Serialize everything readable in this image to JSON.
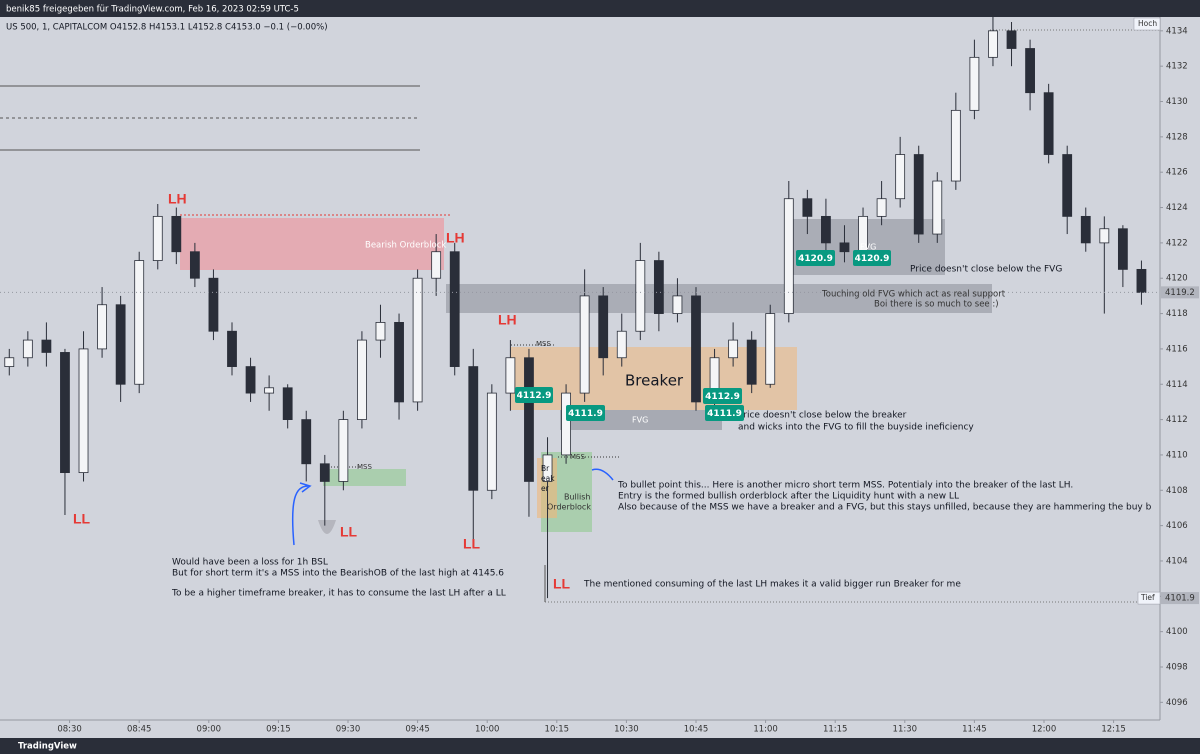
{
  "header": {
    "title": "benik85 freigegeben für TradingView.com, Feb 16, 2023 02:59 UTC-5"
  },
  "footer": {
    "brand": "TradingView"
  },
  "chart_data": {
    "type": "candlestick",
    "title": "US 500, 1, CAPITALCOM  O4152.8  H4153.1  L4152.8  C4153.0  −0.1 (−0.00%)",
    "x": [
      "08:17",
      "08:21",
      "08:25",
      "08:29",
      "08:33",
      "08:37",
      "08:41",
      "08:45",
      "08:49",
      "08:53",
      "08:57",
      "09:01",
      "09:05",
      "09:09",
      "09:13",
      "09:17",
      "09:21",
      "09:25",
      "09:29",
      "09:33",
      "09:37",
      "09:41",
      "09:45",
      "09:49",
      "09:53",
      "09:57",
      "10:01",
      "10:05",
      "10:09",
      "10:13",
      "10:17",
      "10:21",
      "10:25",
      "10:29",
      "10:33",
      "10:37",
      "10:41",
      "10:45",
      "10:49",
      "10:53",
      "10:57",
      "11:01",
      "11:05",
      "11:09",
      "11:13",
      "11:17",
      "11:21",
      "11:25",
      "11:29",
      "11:33",
      "11:37",
      "11:41",
      "11:45",
      "11:49",
      "11:53",
      "11:57",
      "12:01",
      "12:05",
      "12:09",
      "12:13",
      "12:17",
      "12:21"
    ],
    "open": [
      4115.0,
      4115.5,
      4116.5,
      4115.8,
      4109,
      4116,
      4118.5,
      4114,
      4121,
      4123.5,
      4121.5,
      4120,
      4117,
      4115,
      4113.5,
      4113.8,
      4112,
      4109.5,
      4108.5,
      4112,
      4116.5,
      4117.5,
      4113,
      4120,
      4121.5,
      4115,
      4108,
      4113.5,
      4115.5,
      4108.5,
      4110,
      4113.5,
      4119,
      4115.5,
      4117,
      4121,
      4118,
      4119,
      4113,
      4115.5,
      4116.5,
      4114,
      4118,
      4124.5,
      4123.5,
      4122,
      4121.5,
      4123.5,
      4124.5,
      4127,
      4122.5,
      4125.5,
      4129.5,
      4132.5,
      4134,
      4133,
      4130.5,
      4127,
      4123.5,
      4122,
      4122.8,
      4120.5
    ],
    "high": [
      4116,
      4117,
      4117.5,
      4116,
      4117,
      4119.5,
      4119,
      4121.5,
      4124.2,
      4124,
      4122,
      4120.5,
      4117.5,
      4115.5,
      4114.5,
      4114,
      4112.5,
      4110,
      4112.5,
      4117,
      4118.5,
      4118,
      4120.5,
      4122.5,
      4122,
      4116,
      4114,
      4116.5,
      4116,
      4111,
      4114,
      4120.5,
      4119.5,
      4118,
      4122,
      4121.5,
      4120,
      4119.5,
      4116,
      4117.5,
      4117,
      4118.5,
      4125.5,
      4125,
      4124.5,
      4123,
      4124,
      4125.5,
      4128,
      4127.5,
      4126,
      4130.5,
      4133.5,
      4135,
      4134.5,
      4133.5,
      4131,
      4127.5,
      4124,
      4123.5,
      4123,
      4121
    ],
    "low": [
      4114.5,
      4115,
      4115,
      4106.6,
      4108.5,
      4115.5,
      4113,
      4113.5,
      4120.5,
      4120.8,
      4119.5,
      4116.5,
      4114.5,
      4113,
      4112.5,
      4111.5,
      4108.5,
      4106,
      4108,
      4111.5,
      4115.5,
      4112,
      4112.5,
      4119,
      4114.5,
      4105.2,
      4107.5,
      4112.5,
      4106.5,
      4101.9,
      4109.5,
      4113,
      4114.5,
      4115,
      4116.5,
      4117,
      4117.5,
      4112.5,
      4112.8,
      4115,
      4113.5,
      4113.8,
      4117.5,
      4122.5,
      4121,
      4120.9,
      4121,
      4123,
      4124,
      4122,
      4122,
      4125,
      4129,
      4132,
      4132,
      4129.5,
      4126.5,
      4122.5,
      4121.5,
      4118,
      4119.5,
      4118.5
    ],
    "close": [
      4115.5,
      4116.5,
      4115.8,
      4109,
      4116,
      4118.5,
      4114,
      4121,
      4123.5,
      4121.5,
      4120,
      4117,
      4115,
      4113.5,
      4113.8,
      4112,
      4109.5,
      4108.5,
      4112,
      4116.5,
      4117.5,
      4113,
      4120,
      4121.5,
      4115,
      4108,
      4113.5,
      4115.5,
      4108.5,
      4110,
      4113.5,
      4119,
      4115.5,
      4117,
      4121,
      4118,
      4119,
      4113,
      4115.5,
      4116.5,
      4114,
      4118,
      4124.5,
      4123.5,
      4122,
      4121.5,
      4123.5,
      4124.5,
      4127,
      4122.5,
      4125.5,
      4129.5,
      4132.5,
      4134,
      4133,
      4130.5,
      4127,
      4123.5,
      4122,
      4122.8,
      4120.5,
      4119.2
    ],
    "up_color": "#f4f5f7",
    "down_color": "#2a2e39",
    "xlim": [
      "08:15",
      "12:25"
    ],
    "xticks": [
      "08:30",
      "08:45",
      "09:00",
      "09:15",
      "09:30",
      "09:45",
      "10:00",
      "10:15",
      "10:30",
      "10:45",
      "11:00",
      "11:15",
      "11:30",
      "11:45",
      "12:00",
      "12:15"
    ],
    "ylim": [
      4095,
      4134.5
    ],
    "yticks": [
      4096,
      4098,
      4100,
      4102,
      4104,
      4106,
      4108,
      4110,
      4112,
      4114,
      4116,
      4118,
      4120,
      4122,
      4124,
      4126,
      4128,
      4130,
      4132,
      4134
    ],
    "high_label": "Hoch",
    "low_label": "Tief"
  },
  "annotations": [
    "LH",
    "Bearish Orderblock",
    "LH",
    "LH",
    "LL",
    "LL",
    "LL",
    "LL",
    "MSS",
    "MSS",
    "MSS",
    "Breaker",
    "FVG",
    "FVG",
    "Br",
    "eak",
    "er",
    "Bullish",
    "Orderblock",
    "Price doesn't close below the FVG",
    "Touching old FVG which act as real support",
    "Boi there is so much to see :)",
    "Price doesn't close below the breaker",
    "and wicks into the FVG to fill the buyside ineficiency",
    "To bullet point this... Here is another micro short term MSS. Potentialy into the breaker of the last LH.",
    "Entry is the formed bullish orderblock after the Liquidity hunt with a new LL",
    "Also because of the MSS we have a breaker and a FVG, but this stays unfilled, because they are hammering the buy b",
    "Would have been a loss for 1h BSL",
    "But for short term it's a MSS into the BearishOB of the last high at 4145.6",
    "To be a higher timeframe breaker, it has to consume the last LH after a LL",
    "The mentioned consuming of the last LH makes it a valid bigger run Breaker for me",
    "4112.9",
    "4111.9",
    "4112.9",
    "4111.9",
    "4120.9",
    "4120.9"
  ]
}
